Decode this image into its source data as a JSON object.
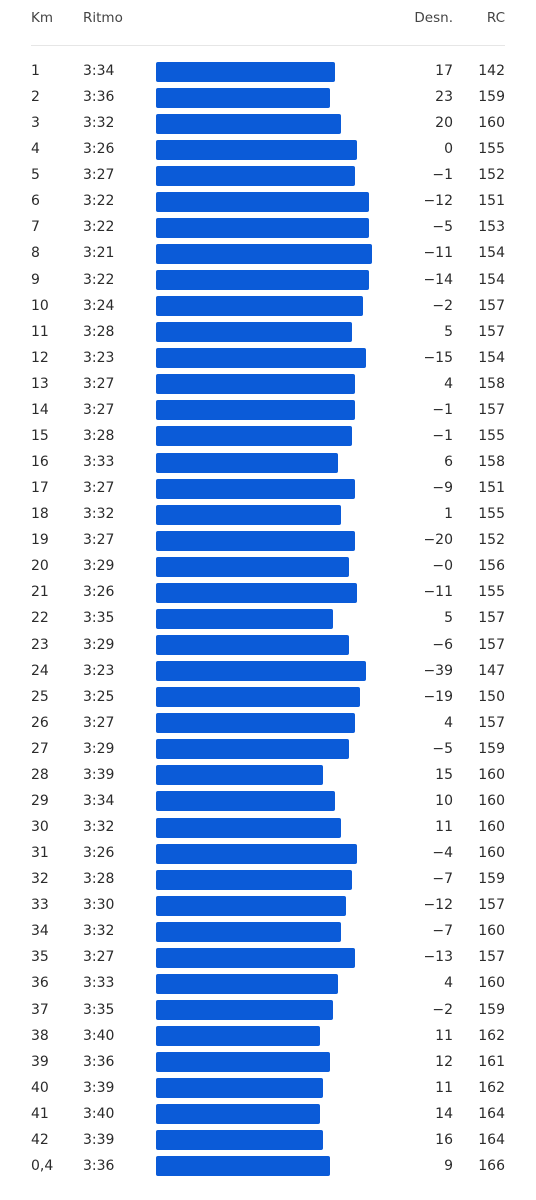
{
  "table": {
    "headers": [
      "Km",
      "Ritmo",
      "Desn.",
      "RC"
    ],
    "rows": [
      [
        "1",
        "3:34",
        "17",
        "142"
      ],
      [
        "2",
        "3:36",
        "23",
        "159"
      ],
      [
        "3",
        "3:32",
        "20",
        "160"
      ],
      [
        "4",
        "3:26",
        "0",
        "155"
      ],
      [
        "5",
        "3:27",
        "−1",
        "152"
      ],
      [
        "6",
        "3:22",
        "−12",
        "151"
      ],
      [
        "7",
        "3:22",
        "−5",
        "153"
      ],
      [
        "8",
        "3:21",
        "−11",
        "154"
      ],
      [
        "9",
        "3:22",
        "−14",
        "154"
      ],
      [
        "10",
        "3:24",
        "−2",
        "157"
      ],
      [
        "11",
        "3:28",
        "5",
        "157"
      ],
      [
        "12",
        "3:23",
        "−15",
        "154"
      ],
      [
        "13",
        "3:27",
        "4",
        "158"
      ],
      [
        "14",
        "3:27",
        "−1",
        "157"
      ],
      [
        "15",
        "3:28",
        "−1",
        "155"
      ],
      [
        "16",
        "3:33",
        "6",
        "158"
      ],
      [
        "17",
        "3:27",
        "−9",
        "151"
      ],
      [
        "18",
        "3:32",
        "1",
        "155"
      ],
      [
        "19",
        "3:27",
        "−20",
        "152"
      ],
      [
        "20",
        "3:29",
        "−0",
        "156"
      ],
      [
        "21",
        "3:26",
        "−11",
        "155"
      ],
      [
        "22",
        "3:35",
        "5",
        "157"
      ],
      [
        "23",
        "3:29",
        "−6",
        "157"
      ],
      [
        "24",
        "3:23",
        "−39",
        "147"
      ],
      [
        "25",
        "3:25",
        "−19",
        "150"
      ],
      [
        "26",
        "3:27",
        "4",
        "157"
      ],
      [
        "27",
        "3:29",
        "−5",
        "159"
      ],
      [
        "28",
        "3:39",
        "15",
        "160"
      ],
      [
        "29",
        "3:34",
        "10",
        "160"
      ],
      [
        "30",
        "3:32",
        "11",
        "160"
      ],
      [
        "31",
        "3:26",
        "−4",
        "160"
      ],
      [
        "32",
        "3:28",
        "−7",
        "159"
      ],
      [
        "33",
        "3:30",
        "−12",
        "157"
      ],
      [
        "34",
        "3:32",
        "−7",
        "160"
      ],
      [
        "35",
        "3:27",
        "−13",
        "157"
      ],
      [
        "36",
        "3:33",
        "4",
        "160"
      ],
      [
        "37",
        "3:35",
        "−2",
        "159"
      ],
      [
        "38",
        "3:40",
        "11",
        "162"
      ],
      [
        "39",
        "3:36",
        "12",
        "161"
      ],
      [
        "40",
        "3:39",
        "11",
        "162"
      ],
      [
        "41",
        "3:40",
        "14",
        "164"
      ],
      [
        "42",
        "3:39",
        "16",
        "164"
      ],
      [
        "0,4",
        "3:36",
        "9",
        "166"
      ]
    ]
  }
}
